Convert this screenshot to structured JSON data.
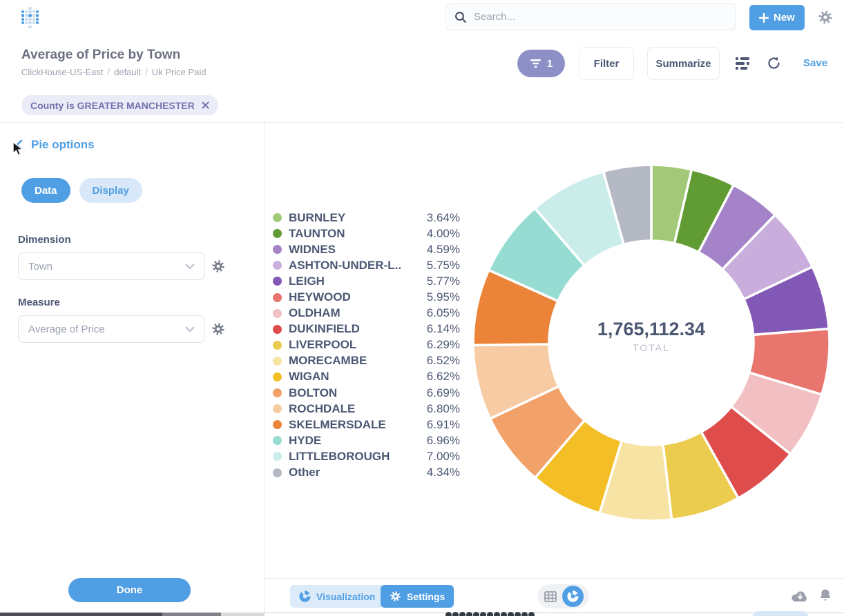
{
  "topnav": {
    "search_placeholder": "Search...",
    "new_label": "New"
  },
  "header": {
    "title": "Average of Price by Town",
    "breadcrumb": {
      "database": "ClickHouse-US-East",
      "schema": "default",
      "table": "Uk Price Paid"
    },
    "filter_count": "1",
    "filter_label": "Filter",
    "summarize_label": "Summarize",
    "save_label": "Save"
  },
  "filter_chip": {
    "text": "County is GREATER MANCHESTER"
  },
  "sidebar": {
    "title": "Pie options",
    "tabs": {
      "data": "Data",
      "display": "Display"
    },
    "dimension_label": "Dimension",
    "dimension_value": "Town",
    "measure_label": "Measure",
    "measure_value": "Average of Price",
    "done_label": "Done"
  },
  "chart_data": {
    "type": "pie",
    "title": "Average of Price by Town",
    "center_value": "1,765,112.34",
    "center_label": "TOTAL",
    "legend_position": "left",
    "donut": true,
    "start_angle_deg": -90,
    "direction": "clockwise",
    "slices": [
      {
        "name": "BURNLEY",
        "value": 3.64,
        "label": "3.64%",
        "color": "#A3C878"
      },
      {
        "name": "TAUNTON",
        "value": 4.0,
        "label": "4.00%",
        "color": "#609C33"
      },
      {
        "name": "WIDNES",
        "value": 4.59,
        "label": "4.59%",
        "color": "#A583C9"
      },
      {
        "name": "ASHTON-UNDER-L..",
        "value": 5.75,
        "label": "5.75%",
        "color": "#C9AEDD"
      },
      {
        "name": "LEIGH",
        "value": 5.77,
        "label": "5.77%",
        "color": "#8158B5"
      },
      {
        "name": "HEYWOOD",
        "value": 5.95,
        "label": "5.95%",
        "color": "#E8756E"
      },
      {
        "name": "OLDHAM",
        "value": 6.05,
        "label": "6.05%",
        "color": "#F2C0C2"
      },
      {
        "name": "DUKINFIELD",
        "value": 6.14,
        "label": "6.14%",
        "color": "#DE4C4C"
      },
      {
        "name": "LIVERPOOL",
        "value": 6.29,
        "label": "6.29%",
        "color": "#EBCC4F"
      },
      {
        "name": "MORECAMBE",
        "value": 6.52,
        "label": "6.52%",
        "color": "#F7E3A3"
      },
      {
        "name": "WIGAN",
        "value": 6.62,
        "label": "6.62%",
        "color": "#F3BE26"
      },
      {
        "name": "BOLTON",
        "value": 6.69,
        "label": "6.69%",
        "color": "#F2A268"
      },
      {
        "name": "ROCHDALE",
        "value": 6.8,
        "label": "6.80%",
        "color": "#F7CBA3"
      },
      {
        "name": "SKELMERSDALE",
        "value": 6.91,
        "label": "6.91%",
        "color": "#EB8438"
      },
      {
        "name": "HYDE",
        "value": 6.96,
        "label": "6.96%",
        "color": "#96DCD2"
      },
      {
        "name": "LITTLEBOROUGH",
        "value": 7.0,
        "label": "7.00%",
        "color": "#CBEDE9"
      },
      {
        "name": "Other",
        "value": 4.34,
        "label": "4.34%",
        "color": "#B5B9C4"
      }
    ]
  },
  "bottombar": {
    "visualization_label": "Visualization",
    "settings_label": "Settings"
  },
  "colors": {
    "brand": "#509EE3",
    "text_dark": "#4C5773",
    "text_gray": "#9AA0AE",
    "badge_purple": "#8D90C7",
    "chip_bg": "#ECECF8",
    "chip_text": "#7173AD",
    "logo_dark_dot": "#509EE3",
    "logo_light_dot": "#C7DCF2"
  }
}
